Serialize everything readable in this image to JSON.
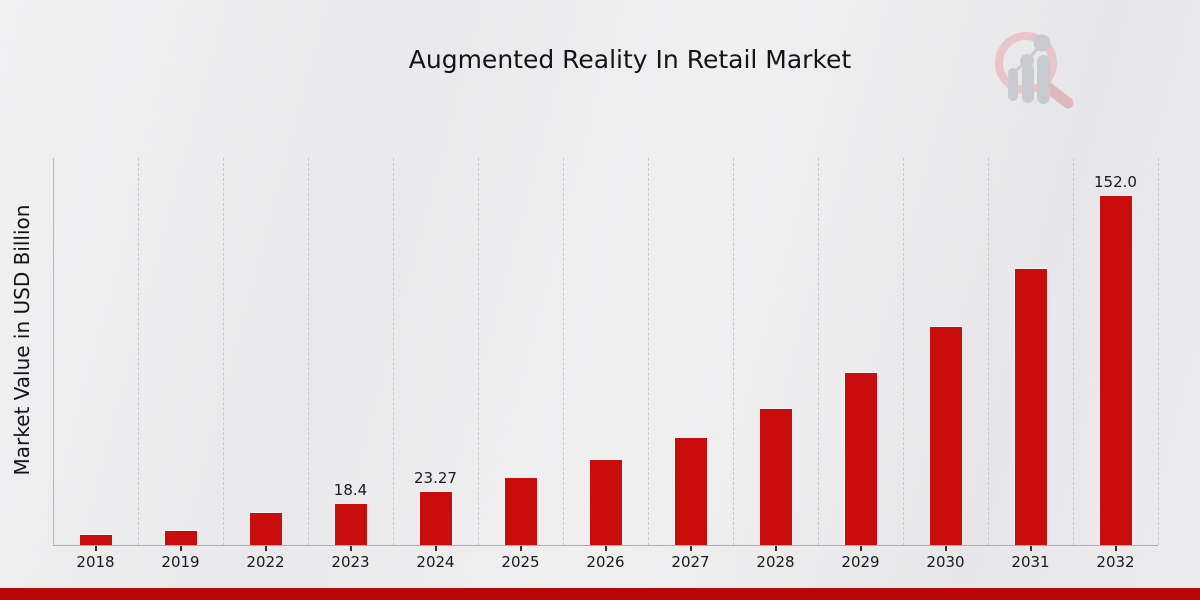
{
  "header": {
    "title": "Augmented Reality In Retail Market"
  },
  "chart_data": {
    "type": "bar",
    "title": "Augmented Reality In Retail Market",
    "xlabel": "",
    "ylabel": "Market Value in USD Billion",
    "categories": [
      "2018",
      "2019",
      "2022",
      "2023",
      "2024",
      "2025",
      "2026",
      "2027",
      "2028",
      "2029",
      "2030",
      "2031",
      "2032"
    ],
    "values": [
      4.9,
      6.6,
      14.2,
      18.4,
      23.27,
      29.43,
      37.22,
      47.07,
      59.53,
      75.29,
      95.21,
      120.4,
      152.0
    ],
    "value_labels": [
      "",
      "",
      "",
      "18.4",
      "23.27",
      "",
      "",
      "",
      "",
      "",
      "",
      "",
      "152.0"
    ],
    "ylim": [
      0,
      168
    ],
    "grid": "vertical dashed gridlines between categories",
    "legend_position": "none",
    "bar_color": "#c90d0d"
  },
  "branding": {
    "watermark_icon": "magnifier-bar-chart-logo",
    "colors": {
      "ring": "#e7c5ca",
      "handle": "#e0b7bd",
      "chart_elements": "#c8cad0"
    }
  },
  "decor": {
    "bottom_strip_color": "#b90606",
    "background_gradient": [
      "#f1f1f2",
      "#e7e7e9"
    ],
    "bar_edge_color": "#f3f3f3",
    "axis_color": "#b9b9bb",
    "grid_color": "#c7c7c9",
    "text_color": "#141414"
  }
}
